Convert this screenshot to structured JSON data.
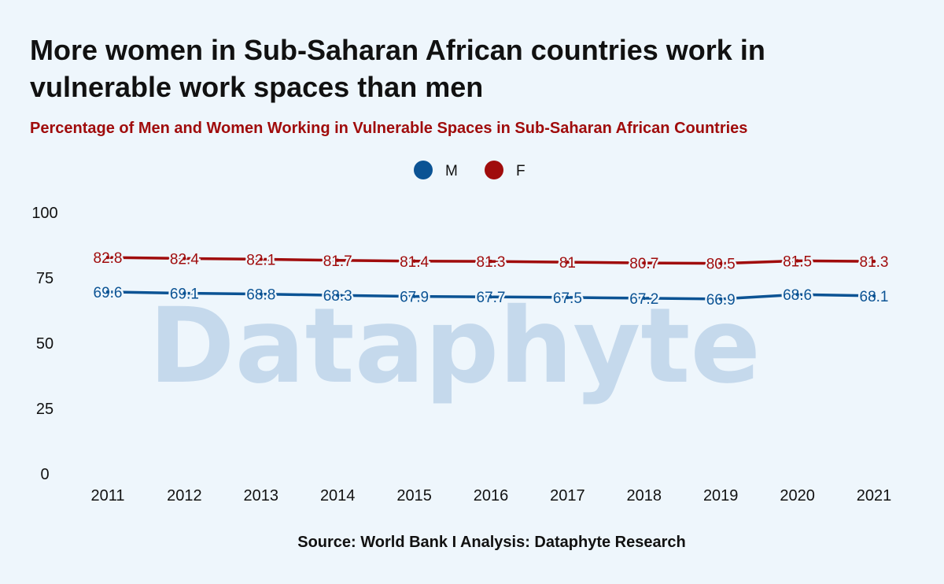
{
  "header": {
    "title": "More women in Sub-Saharan African countries work in vulnerable work spaces than men",
    "subtitle": "Percentage of Men and Women Working in Vulnerable Spaces in Sub-Saharan African Countries"
  },
  "source": "Source: World Bank I Analysis: Dataphyte Research",
  "watermark": "Dataphyte",
  "chart_data": {
    "type": "line",
    "x": [
      2011,
      2012,
      2013,
      2014,
      2015,
      2016,
      2017,
      2018,
      2019,
      2020,
      2021
    ],
    "ylim": [
      0,
      100
    ],
    "yticks": [
      0,
      25,
      50,
      75,
      100
    ],
    "legend_position": "top-center",
    "grid": false,
    "series": [
      {
        "name": "M",
        "color": "#0b5394",
        "values": [
          69.6,
          69.1,
          68.8,
          68.3,
          67.9,
          67.7,
          67.5,
          67.2,
          66.9,
          68.6,
          68.1
        ]
      },
      {
        "name": "F",
        "color": "#a00c0c",
        "values": [
          82.8,
          82.4,
          82.1,
          81.7,
          81.4,
          81.3,
          81,
          80.7,
          80.5,
          81.5,
          81.3
        ]
      }
    ]
  }
}
